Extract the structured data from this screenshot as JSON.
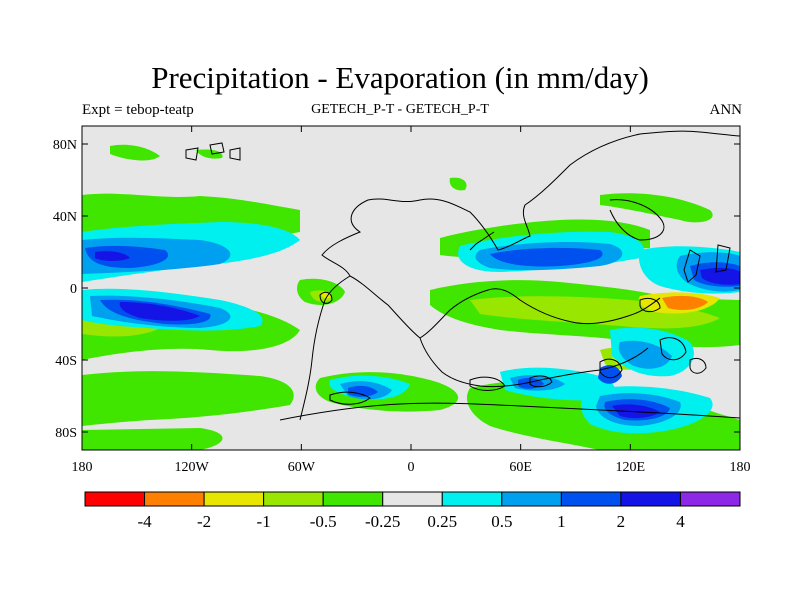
{
  "title": "Precipitation - Evaporation (in mm/day)",
  "left_label": "Expt = tebop-teatp",
  "center_label": "GETECH_P-T - GETECH_P-T",
  "right_label": "ANN",
  "lat_ticks": [
    {
      "label": "80N",
      "lat": 80
    },
    {
      "label": "40N",
      "lat": 40
    },
    {
      "label": "0",
      "lat": 0
    },
    {
      "label": "40S",
      "lat": -40
    },
    {
      "label": "80S",
      "lat": -80
    }
  ],
  "lon_ticks": [
    {
      "label": "180",
      "lon": -180
    },
    {
      "label": "120W",
      "lon": -120
    },
    {
      "label": "60W",
      "lon": -60
    },
    {
      "label": "0",
      "lon": 0
    },
    {
      "label": "60E",
      "lon": 60
    },
    {
      "label": "120E",
      "lon": 120
    },
    {
      "label": "180",
      "lon": 180
    }
  ],
  "colorbar": {
    "colors": [
      "#ff0000",
      "#ff8000",
      "#e6e600",
      "#99e600",
      "#40e600",
      "#e6e6e6",
      "#00f0f0",
      "#00a0f0",
      "#0050f0",
      "#1414e6",
      "#8c28e6"
    ],
    "labels": [
      "-4",
      "-2",
      "-1",
      "-0.5",
      "-0.25",
      "0.25",
      "0.5",
      "1",
      "2",
      "4"
    ]
  },
  "colors": {
    "land_background": "#e6e6e6",
    "green": "#40e600",
    "lightgreen": "#99e600",
    "yellow": "#e6e600",
    "orange": "#ff8000",
    "cyan": "#00f0f0",
    "lightblue": "#00a0f0",
    "blue": "#0050f0",
    "darkblue": "#1414e6",
    "purple": "#8c28e6"
  }
}
